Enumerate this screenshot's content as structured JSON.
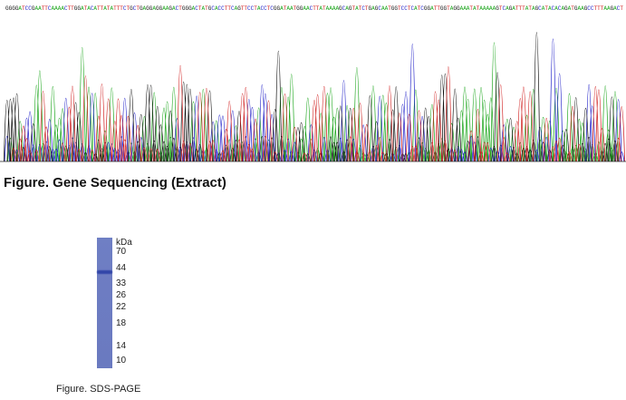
{
  "chromatogram": {
    "sequence": "GGGGATCCGAATTCAAAACTTGGATACATTATATTTCTGCTGAGGAGGAAGACTGGGACTATGCACCTTCAGTTCCTACCTCGGATAATGGAACTTATAAAAGCAGTATCTGAGCAATGGTCCTCATCGGATTGGTAGGAAATATAAAAAGTCAGATTTATAGCATACACAGATGAAGCCTTTAAGACT",
    "colors": {
      "A": "#1aa51a",
      "C": "#2020c8",
      "G": "#111111",
      "T": "#d02020"
    }
  },
  "figure1": {
    "caption": "Figure. Gene Sequencing (Extract)"
  },
  "gel": {
    "unit_label": "kDa",
    "markers": [
      "70",
      "44",
      "33",
      "26",
      "22",
      "18",
      "14",
      "10"
    ],
    "band_at": "44",
    "lane_color": "#6d7cc2",
    "band_color": "#3246a8"
  },
  "figure2": {
    "caption": "Figure. SDS-PAGE"
  }
}
